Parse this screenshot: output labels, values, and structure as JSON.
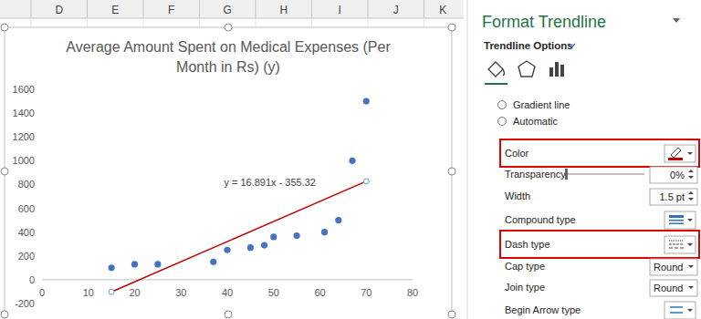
{
  "chart_data": {
    "type": "scatter",
    "title": "Average Amount Spent on Medical Expenses (Per Month in Rs) (y)",
    "x": [
      15,
      20,
      25,
      37,
      40,
      45,
      48,
      50,
      55,
      61,
      64,
      67,
      70
    ],
    "values": [
      100,
      130,
      130,
      150,
      250,
      270,
      290,
      360,
      370,
      400,
      500,
      1000,
      1500
    ],
    "color": "#4472c4",
    "marker": "circle",
    "xlim": [
      0,
      80
    ],
    "xticks": [
      0,
      10,
      20,
      30,
      40,
      50,
      60,
      70,
      80
    ],
    "ylim": [
      -200,
      1600
    ],
    "yticks": [
      -200,
      0,
      200,
      400,
      600,
      800,
      1000,
      1200,
      1400,
      1600
    ],
    "grid": false,
    "trendline": {
      "x": [
        15,
        70
      ],
      "values": [
        -102,
        827
      ],
      "color": "#c00000",
      "equation": "y = 16.891x - 355.32"
    }
  },
  "sheet": {
    "columns": [
      "D",
      "E",
      "F",
      "G",
      "H",
      "I",
      "J",
      "K"
    ]
  },
  "pane": {
    "title": "Format Trendline",
    "section": "Trendline Options",
    "options": [
      "Gradient line",
      "Automatic"
    ],
    "properties": [
      {
        "label": "Color",
        "highlighted": true
      },
      {
        "label": "Transparency",
        "value": "0%"
      },
      {
        "label": "Width",
        "value": "1.5 pt"
      },
      {
        "label": "Compound type"
      },
      {
        "label": "Dash type",
        "highlighted": true
      },
      {
        "label": "Cap type",
        "value": "Round"
      },
      {
        "label": "Join type",
        "value": "Round"
      },
      {
        "label": "Begin Arrow type"
      }
    ]
  }
}
